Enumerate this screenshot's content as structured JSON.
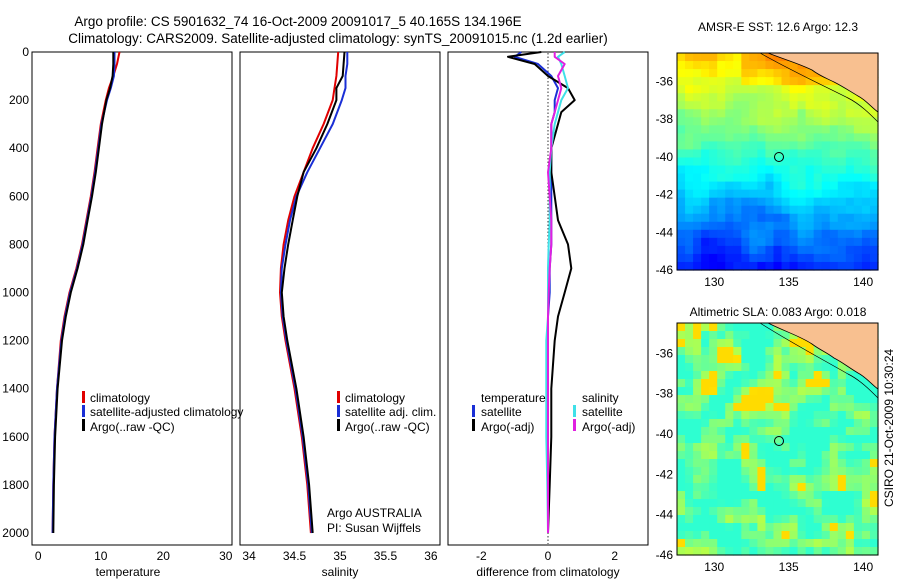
{
  "header": {
    "title_line1": "Argo profile: CS 5901632_74 16-Oct-2009 20091017_5 40.165S 134.196E",
    "title_line2": "Climatology: CARS2009. Satellite-adjusted climatology: synTS_20091015.nc (1.2d earlier)"
  },
  "side_label": "CSIRO 21-Oct-2009 10:30:24",
  "colors": {
    "climatology": "#e00000",
    "satellite": "#1a2fd6",
    "argo": "#000000",
    "sat_diff_sal": "#3fe0e8",
    "argo_diff_sal": "#e020e0",
    "land": "#f8c090"
  },
  "chart_data": [
    {
      "type": "line",
      "xlabel": "temperature",
      "xlim": [
        -1,
        31
      ],
      "xticks": [
        "0",
        "10",
        "20",
        "30"
      ],
      "ylim": [
        2050,
        0
      ],
      "yticks": [
        "0",
        "200",
        "400",
        "600",
        "800",
        "1000",
        "1200",
        "1400",
        "1600",
        "1800",
        "2000"
      ],
      "legend": [
        "climatology",
        "satellite-adjusted climatology",
        "Argo(..raw -QC)"
      ],
      "depth": [
        0,
        50,
        100,
        150,
        200,
        300,
        400,
        500,
        600,
        700,
        800,
        900,
        1000,
        1100,
        1200,
        1400,
        1600,
        1800,
        2000
      ],
      "series": [
        {
          "name": "climatology",
          "values": [
            13.0,
            12.6,
            12.0,
            11.3,
            10.8,
            10.0,
            9.5,
            9.0,
            8.4,
            7.7,
            7.0,
            6.1,
            5.0,
            4.2,
            3.6,
            3.0,
            2.6,
            2.4,
            2.3
          ]
        },
        {
          "name": "satellite-adjusted climatology",
          "values": [
            12.2,
            12.2,
            12.1,
            11.6,
            11.0,
            10.1,
            9.6,
            9.1,
            8.5,
            7.8,
            7.1,
            6.2,
            5.1,
            4.3,
            3.7,
            3.0,
            2.6,
            2.4,
            2.3
          ]
        },
        {
          "name": "Argo(..raw -QC)",
          "values": [
            12.0,
            12.0,
            11.9,
            11.5,
            10.9,
            10.2,
            9.7,
            9.2,
            8.6,
            7.9,
            7.2,
            6.3,
            5.2,
            4.4,
            3.8,
            3.1,
            2.7,
            2.5,
            2.4
          ]
        }
      ]
    },
    {
      "type": "line",
      "xlabel": "salinity",
      "xlim": [
        33.9,
        36.1
      ],
      "xticks": [
        "34",
        "34.5",
        "35",
        "35.5",
        "36"
      ],
      "ylim": [
        2050,
        0
      ],
      "legend": [
        "climatology",
        "satellite adj. clim.",
        "Argo(..raw -QC)"
      ],
      "annotation": [
        "Argo AUSTRALIA",
        "PI: Susan Wijffels"
      ],
      "depth": [
        0,
        50,
        100,
        150,
        200,
        300,
        400,
        500,
        600,
        700,
        800,
        900,
        1000,
        1100,
        1200,
        1400,
        1600,
        1800,
        2000
      ],
      "series": [
        {
          "name": "climatology",
          "values": [
            34.98,
            34.97,
            34.96,
            34.94,
            34.92,
            34.82,
            34.7,
            34.6,
            34.5,
            34.43,
            34.38,
            34.35,
            34.34,
            34.36,
            34.4,
            34.5,
            34.58,
            34.64,
            34.68
          ]
        },
        {
          "name": "satellite adj. clim.",
          "values": [
            35.08,
            35.08,
            35.06,
            35.06,
            35.02,
            34.92,
            34.78,
            34.64,
            34.52,
            34.45,
            34.4,
            34.36,
            34.35,
            34.37,
            34.41,
            34.51,
            34.59,
            34.65,
            34.69
          ]
        },
        {
          "name": "Argo(..raw -QC)",
          "values": [
            35.05,
            35.04,
            35.03,
            34.96,
            34.96,
            34.86,
            34.74,
            34.6,
            34.53,
            34.48,
            34.43,
            34.39,
            34.36,
            34.38,
            34.42,
            34.52,
            34.6,
            34.66,
            34.7
          ]
        }
      ]
    },
    {
      "type": "line",
      "xlabel": "difference from climatology",
      "xlim": [
        -3,
        3
      ],
      "xticks": [
        "-2",
        "0",
        "2"
      ],
      "ylim": [
        2050,
        0
      ],
      "legend_titles": [
        "temperature",
        "salinity"
      ],
      "legend": [
        "satellite",
        "Argo(-adj)",
        "satellite",
        "Argo(-adj)"
      ],
      "depth": [
        0,
        20,
        50,
        100,
        150,
        200,
        250,
        300,
        400,
        500,
        600,
        700,
        800,
        900,
        1000,
        1100,
        1200,
        1400,
        1600,
        1800,
        2000
      ],
      "series": [
        {
          "name": "temperature satellite",
          "values": [
            -0.8,
            -1.0,
            -0.3,
            0.1,
            0.3,
            0.2,
            0.2,
            0.1,
            0.1,
            0.1,
            0.1,
            0.1,
            0.1,
            0.05,
            0.05,
            0.0,
            0.0,
            0.0,
            0.0,
            0.0,
            0.0
          ]
        },
        {
          "name": "temperature Argo(-adj)",
          "values": [
            -0.2,
            -1.2,
            -0.4,
            0.0,
            0.6,
            0.8,
            0.4,
            0.3,
            0.1,
            0.1,
            0.2,
            0.3,
            0.6,
            0.7,
            0.5,
            0.3,
            0.2,
            0.1,
            0.1,
            0.05,
            0.0
          ]
        },
        {
          "name": "salinity satellite",
          "values": [
            0.5,
            0.3,
            0.4,
            0.5,
            0.6,
            0.4,
            0.3,
            0.2,
            0.1,
            0.05,
            0.05,
            0.05,
            0.02,
            0.0,
            0.0,
            0.0,
            -0.05,
            -0.05,
            -0.05,
            -0.02,
            0.0
          ]
        },
        {
          "name": "salinity Argo(-adj)",
          "values": [
            0.2,
            0.2,
            0.5,
            0.3,
            0.4,
            0.3,
            0.2,
            0.1,
            0.1,
            0.0,
            0.05,
            0.1,
            0.1,
            0.05,
            0.02,
            0.0,
            0.0,
            0.0,
            0.0,
            0.0,
            0.0
          ]
        }
      ]
    },
    {
      "type": "heatmap",
      "title": "AMSR-E SST: 12.6 Argo: 12.3",
      "xlim": [
        127.5,
        141
      ],
      "xticks": [
        "130",
        "135",
        "140"
      ],
      "ylim": [
        -46,
        -34.5
      ],
      "yticks": [
        "-36",
        "-38",
        "-40",
        "-42",
        "-44",
        "-46"
      ],
      "marker": {
        "lon": 134.196,
        "lat": -40.165
      },
      "palette": "jet, warm north / cold south"
    },
    {
      "type": "heatmap",
      "title": "Altimetric SLA: 0.083 Argo: 0.018",
      "xlim": [
        127.5,
        141
      ],
      "xticks": [
        "130",
        "135",
        "140"
      ],
      "ylim": [
        -46,
        -34.5
      ],
      "yticks": [
        "-36",
        "-38",
        "-40",
        "-42",
        "-44",
        "-46"
      ],
      "marker": {
        "lon": 134.196,
        "lat": -40.165
      },
      "palette": "green with yellow highs"
    }
  ]
}
